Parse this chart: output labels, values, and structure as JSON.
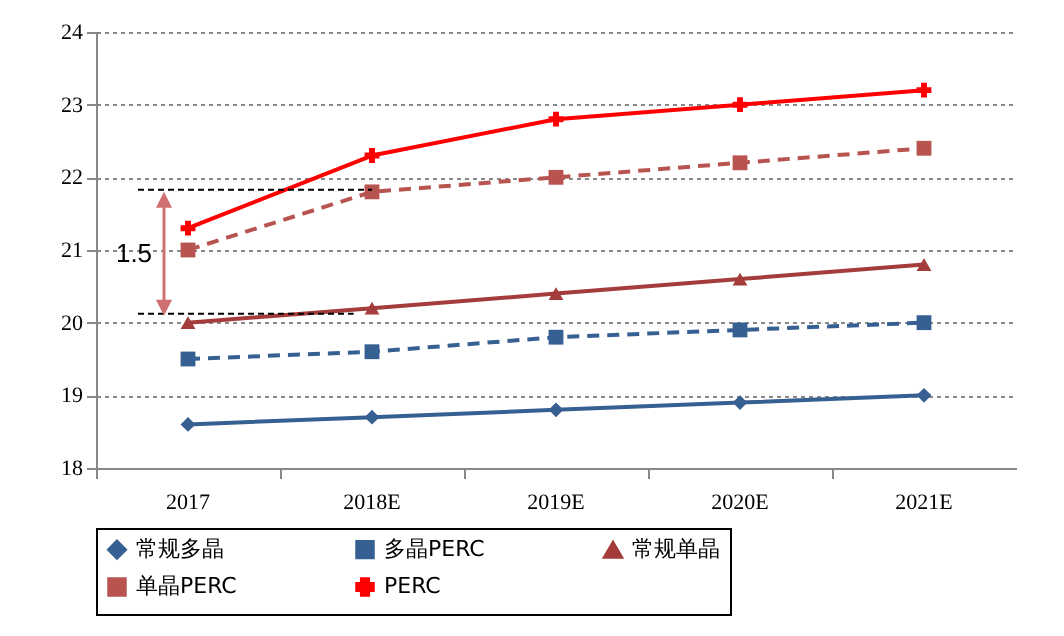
{
  "chart_data": {
    "type": "line",
    "categories": [
      "2017",
      "2018E",
      "2019E",
      "2020E",
      "2021E"
    ],
    "series": [
      {
        "name": "常规多晶",
        "color": "#376092",
        "marker": "diamond",
        "line_style": "solid",
        "values": [
          18.6,
          18.7,
          18.8,
          18.9,
          19.0
        ]
      },
      {
        "name": "多晶PERC",
        "color": "#376092",
        "marker": "square",
        "line_style": "dashed",
        "values": [
          19.5,
          19.6,
          19.8,
          19.9,
          20.0
        ]
      },
      {
        "name": "常规单晶",
        "color": "#a33c3a",
        "marker": "triangle",
        "line_style": "solid",
        "values": [
          20.0,
          20.2,
          20.4,
          20.6,
          20.8
        ]
      },
      {
        "name": "单晶PERC",
        "color": "#b85450",
        "marker": "square",
        "line_style": "dashed",
        "values": [
          21.0,
          21.8,
          22.0,
          22.2,
          22.4
        ]
      },
      {
        "name": "PERC",
        "color": "#ff0000",
        "marker": "cross",
        "line_style": "solid",
        "values": [
          21.3,
          22.3,
          22.8,
          23.0,
          23.2
        ]
      }
    ],
    "ylim": [
      18,
      24
    ],
    "yticks": [
      18,
      19,
      20,
      21,
      22,
      23,
      24
    ],
    "grid": "y",
    "legend": "bottom",
    "annotations": [
      {
        "text": "1.5",
        "x": "2017",
        "y": 20.95
      }
    ]
  }
}
